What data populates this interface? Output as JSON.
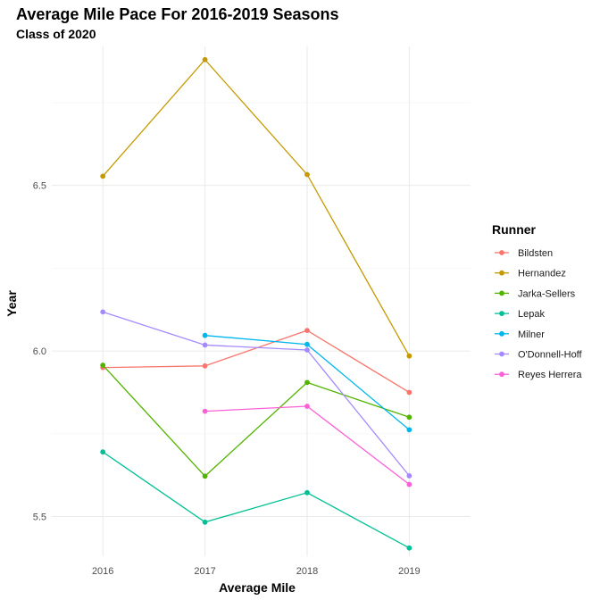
{
  "chart_data": {
    "type": "line",
    "title": "Average Mile Pace For 2016-2019 Seasons",
    "subtitle": "Class of 2020",
    "xlabel": "Average Mile",
    "ylabel": "Year",
    "x": [
      2016,
      2017,
      2018,
      2019
    ],
    "x_tick_labels": [
      "2016",
      "2017",
      "2018",
      "2019"
    ],
    "y_ticks": [
      5.5,
      6.0,
      6.5
    ],
    "y_tick_labels": [
      "5.5",
      "6.0",
      "6.5"
    ],
    "ylim": [
      5.38,
      6.92
    ],
    "grid": true,
    "legend": {
      "title": "Runner",
      "position": "right"
    },
    "series": [
      {
        "name": "Bildsten",
        "color": "#F8766D",
        "values": [
          5.95,
          5.955,
          6.062,
          5.875
        ]
      },
      {
        "name": "Hernandez",
        "color": "#C49A00",
        "values": [
          6.528,
          6.88,
          6.533,
          5.985
        ]
      },
      {
        "name": "Jarka-Sellers",
        "color": "#53B400",
        "values": [
          5.957,
          5.622,
          5.905,
          5.8
        ]
      },
      {
        "name": "Lepak",
        "color": "#00C094",
        "values": [
          5.695,
          5.483,
          5.572,
          5.405
        ]
      },
      {
        "name": "Milner",
        "color": "#00B6EB",
        "values": [
          null,
          6.047,
          6.02,
          5.762
        ]
      },
      {
        "name": "O'Donnell-Hoff",
        "color": "#A58AFF",
        "values": [
          6.118,
          6.018,
          6.003,
          5.623
        ]
      },
      {
        "name": "Reyes Herrera",
        "color": "#FB61D7",
        "values": [
          null,
          5.818,
          5.833,
          5.597
        ]
      }
    ]
  }
}
